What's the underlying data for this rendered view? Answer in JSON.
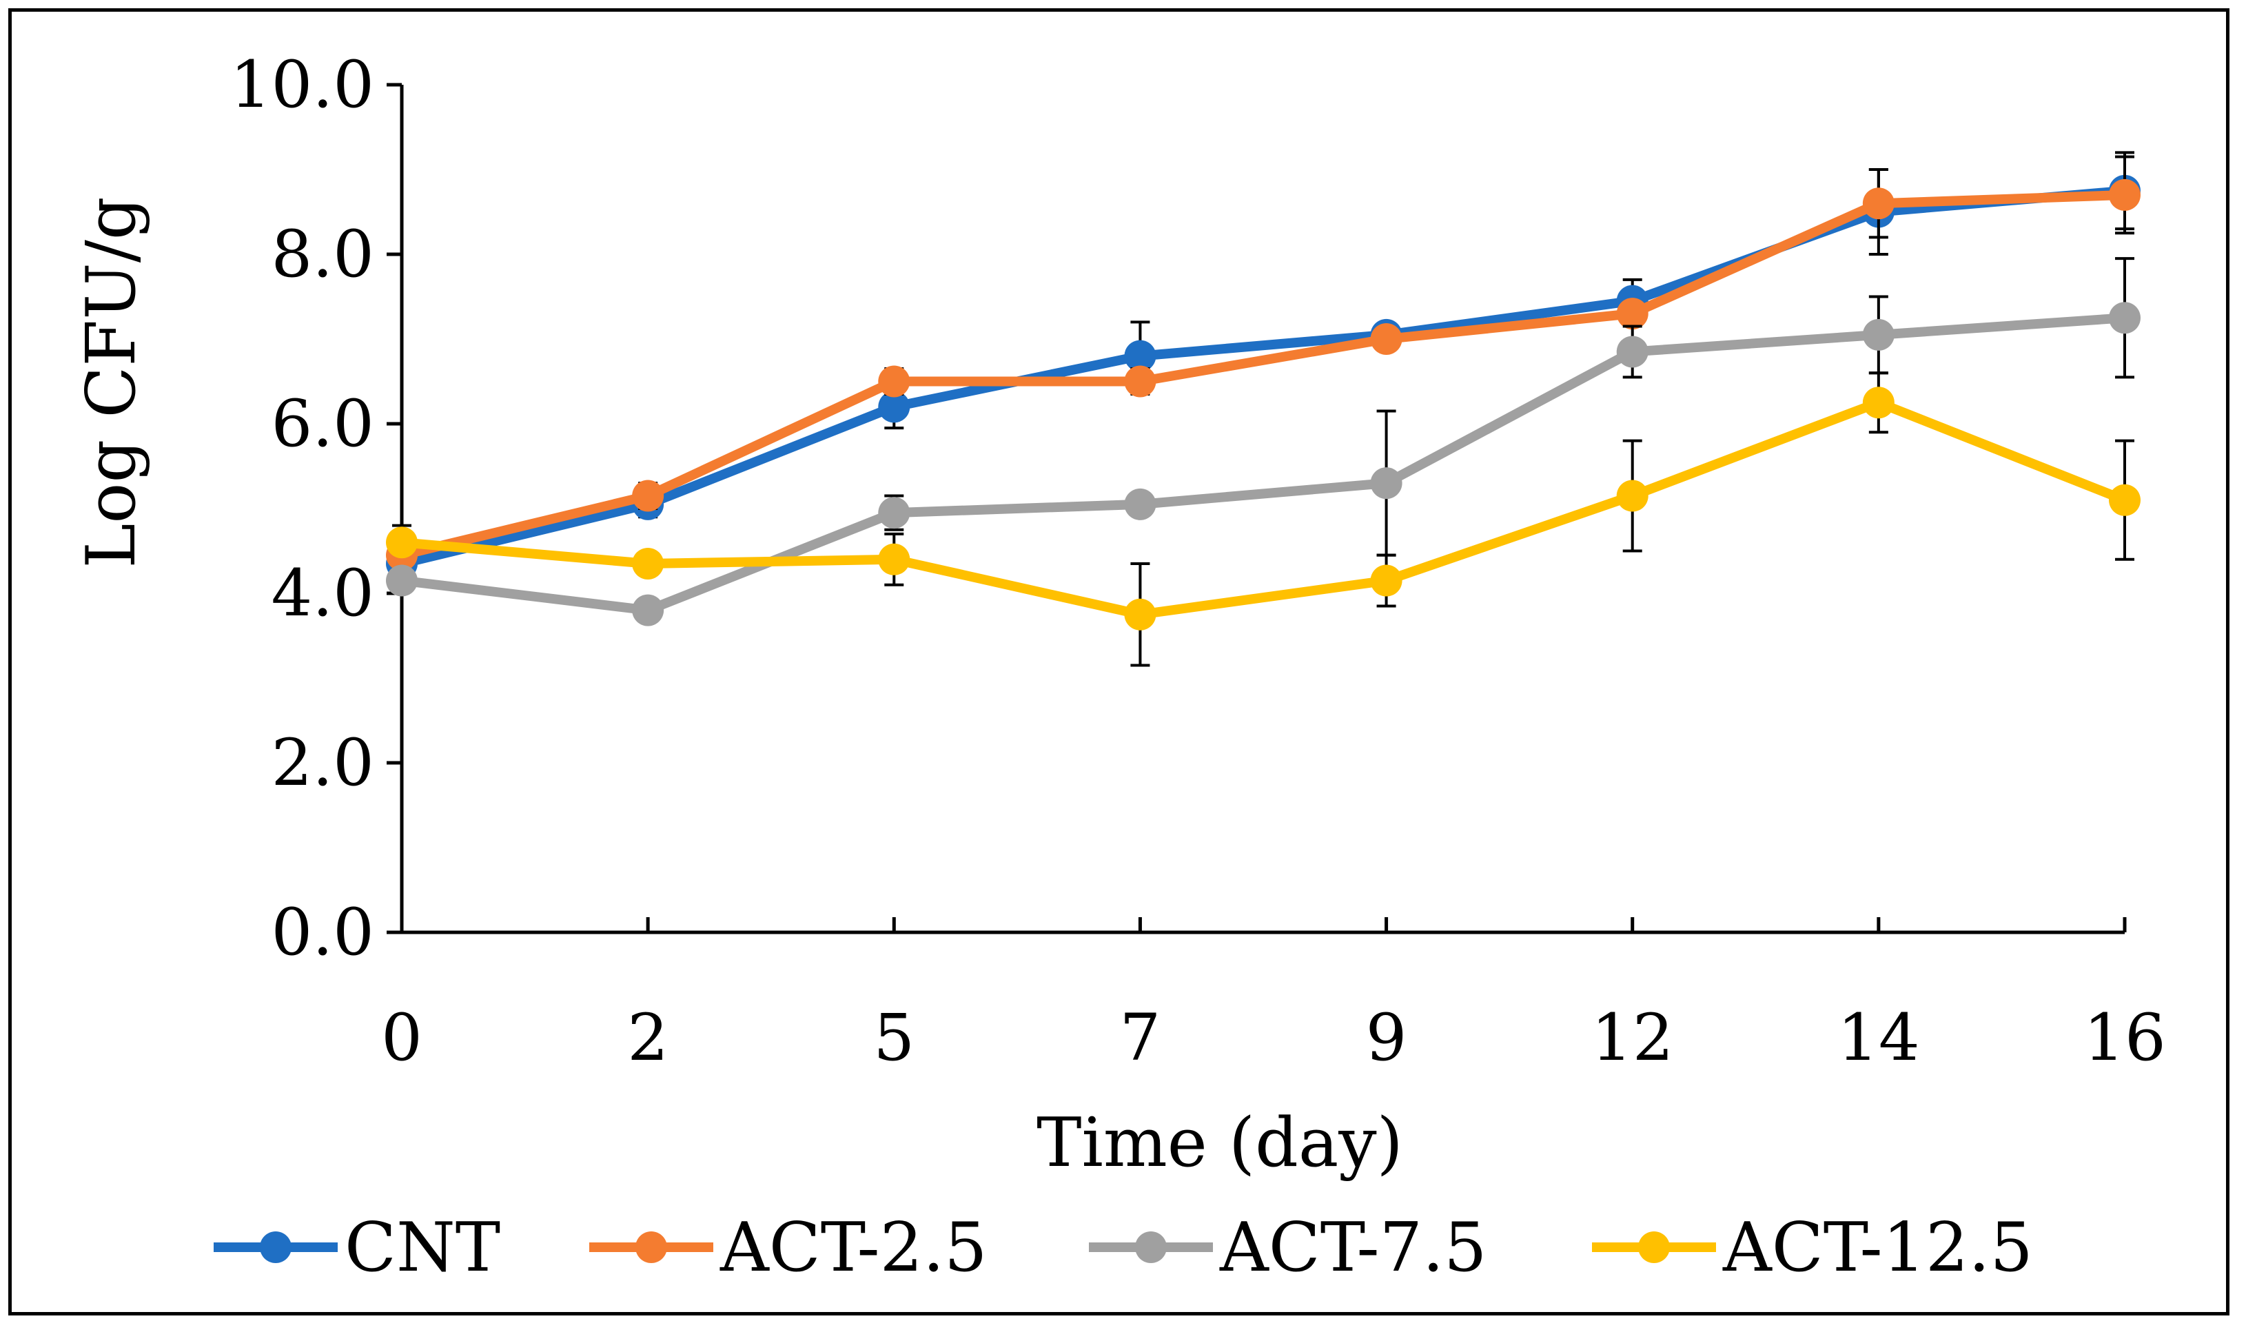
{
  "chart_data": {
    "type": "line",
    "title": "",
    "xlabel": "Time (day)",
    "ylabel": "Log CFU/g",
    "categories": [
      "0",
      "2",
      "5",
      "7",
      "9",
      "12",
      "14",
      "16"
    ],
    "ylim": [
      0,
      10
    ],
    "y_ticks": [
      "0.0",
      "2.0",
      "4.0",
      "6.0",
      "8.0",
      "10.0"
    ],
    "grid": false,
    "legend_position": "bottom",
    "series": [
      {
        "name": "CNT",
        "color": "#1F6FC4",
        "values": [
          4.35,
          5.05,
          6.2,
          6.8,
          7.05,
          7.45,
          8.5,
          8.75
        ],
        "errors": [
          0.15,
          0.15,
          0.25,
          0.4,
          0.1,
          0.25,
          0.5,
          0.45
        ]
      },
      {
        "name": "ACT-2.5",
        "color": "#F47C30",
        "values": [
          4.45,
          5.15,
          6.5,
          6.5,
          7.0,
          7.3,
          8.6,
          8.7
        ],
        "errors": [
          0.35,
          0.15,
          0.15,
          0.15,
          0.1,
          0.1,
          0.4,
          0.45
        ]
      },
      {
        "name": "ACT-7.5",
        "color": "#A0A0A0",
        "values": [
          4.15,
          3.8,
          4.95,
          5.05,
          5.3,
          6.85,
          7.05,
          7.25
        ],
        "errors": [
          0.05,
          0.1,
          0.2,
          0.05,
          0.85,
          0.3,
          0.45,
          0.7
        ]
      },
      {
        "name": "ACT-12.5",
        "color": "#FFC000",
        "values": [
          4.6,
          4.35,
          4.4,
          3.75,
          4.15,
          5.15,
          6.25,
          5.1
        ],
        "errors": [
          0.05,
          0.05,
          0.3,
          0.6,
          0.3,
          0.65,
          0.35,
          0.7
        ]
      }
    ]
  }
}
